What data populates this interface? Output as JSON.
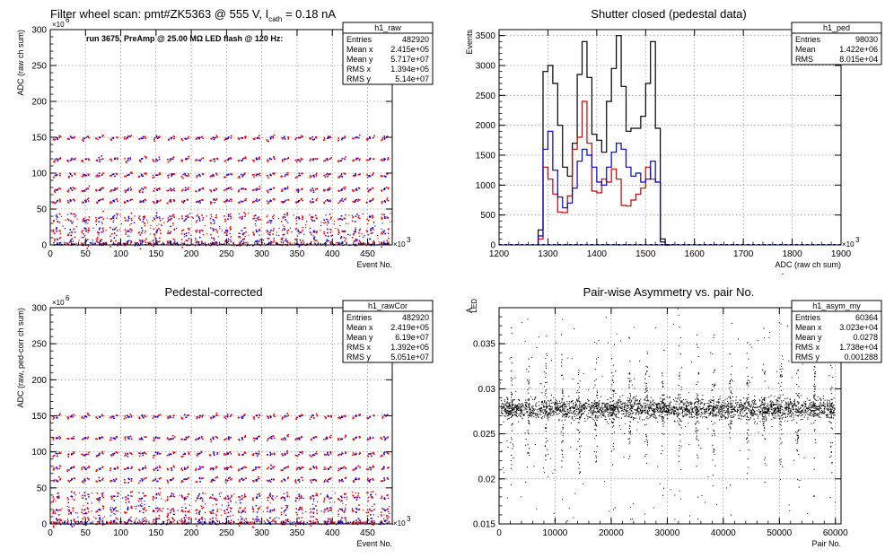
{
  "chart_data": [
    {
      "type": "scatter",
      "title": "Filter wheel scan: pmt#ZK5363 @   555 V, I",
      "title_sub": "cath",
      "title_tail": " = 0.18 nA",
      "annotation": "run 3675, PreAmp @ 25.00 MΩ LED flash @  120 Hz:",
      "xlabel": "Event No.",
      "ylabel": "ADC (raw ch sum)",
      "x_exp": "×10",
      "x_exp_pow": "3",
      "y_exp": "×10",
      "y_exp_pow": "6",
      "xlim": [
        0,
        485
      ],
      "ylim": [
        0,
        300
      ],
      "xticks": [
        "0",
        "50",
        "100",
        "150",
        "200",
        "250",
        "300",
        "350",
        "400",
        "450"
      ],
      "yticks": [
        "0",
        "50",
        "100",
        "150",
        "200",
        "250",
        "300"
      ],
      "levels": [
        150,
        120,
        98,
        78,
        62,
        38,
        20,
        5
      ],
      "colors": {
        "a": "#ff0000",
        "b": "#0000ff"
      },
      "stats": {
        "name": "h1_raw",
        "rows": [
          [
            "Entries",
            "482920"
          ],
          [
            "Mean x",
            "2.415e+05"
          ],
          [
            "Mean y",
            "5.717e+07"
          ],
          [
            "RMS x",
            "1.394e+05"
          ],
          [
            "RMS y",
            "5.14e+07"
          ]
        ]
      }
    },
    {
      "type": "histogram",
      "title": "Shutter closed (pedestal data)",
      "xlabel": "ADC (raw ch sum)",
      "ylabel": "Events",
      "x_exp": "×10",
      "x_exp_pow": "3",
      "xlim": [
        1200,
        1900
      ],
      "ylim": [
        0,
        3600
      ],
      "xticks": [
        "1200",
        "1300",
        "1400",
        "1500",
        "1600",
        "1700",
        "1800",
        "1900"
      ],
      "yticks": [
        "0",
        "500",
        "1000",
        "1500",
        "2000",
        "2500",
        "3000",
        "3500"
      ],
      "bin_start": 1280,
      "bin_width": 10,
      "series": [
        {
          "color": "#000000",
          "values": [
            250,
            2900,
            3000,
            2700,
            2000,
            1300,
            1150,
            1700,
            2850,
            3400,
            2800,
            1850,
            1750,
            1550,
            2400,
            2950,
            3500,
            2650,
            1900,
            1950,
            1950,
            2150,
            2700,
            3400,
            1950,
            100,
            0
          ]
        },
        {
          "color": "#cc0000",
          "values": [
            100,
            1300,
            1100,
            850,
            550,
            540,
            820,
            1600,
            1800,
            2400,
            1700,
            900,
            870,
            1100,
            1050,
            1270,
            1100,
            660,
            650,
            750,
            850,
            950,
            1300,
            1100,
            1050,
            50,
            0
          ]
        },
        {
          "color": "#0000cc",
          "values": [
            150,
            1600,
            1900,
            1250,
            800,
            620,
            700,
            950,
            1400,
            1600,
            1500,
            1300,
            1050,
            1000,
            1300,
            1550,
            1700,
            1600,
            1300,
            1150,
            1200,
            1050,
            1100,
            1400,
            1050,
            50,
            0
          ]
        }
      ],
      "stats": {
        "name": "h1_ped",
        "rows": [
          [
            "Entries",
            "98030"
          ],
          [
            "Mean",
            "1.422e+06"
          ],
          [
            "RMS",
            "8.015e+04"
          ]
        ]
      }
    },
    {
      "type": "scatter",
      "title": "Pedestal-corrected",
      "xlabel": "Event No.",
      "ylabel": "ADC (raw, ped-corr ch sum)",
      "x_exp": "×10",
      "x_exp_pow": "3",
      "y_exp": "×10",
      "y_exp_pow": "6",
      "xlim": [
        0,
        485
      ],
      "ylim": [
        0,
        300
      ],
      "xticks": [
        "0",
        "50",
        "100",
        "150",
        "200",
        "250",
        "300",
        "350",
        "400",
        "450"
      ],
      "yticks": [
        "0",
        "50",
        "100",
        "150",
        "200",
        "250",
        "300"
      ],
      "levels": [
        150,
        120,
        98,
        78,
        62,
        38,
        20,
        5
      ],
      "colors": {
        "a": "#ff0000",
        "b": "#0000ff"
      },
      "stats": {
        "name": "h1_rawCor",
        "rows": [
          [
            "Entries",
            "482920"
          ],
          [
            "Mean x",
            "2.419e+05"
          ],
          [
            "Mean y",
            "6.19e+07"
          ],
          [
            "RMS x",
            "1.392e+05"
          ],
          [
            "RMS y",
            "5.051e+07"
          ]
        ]
      }
    },
    {
      "type": "scatter",
      "title": "Pair-wise Asymmetry vs. pair No.",
      "xlabel": "Pair No.",
      "ylabel": "A",
      "ylabel_sub": "LED",
      "xlim": [
        0,
        61000
      ],
      "ylim": [
        0.015,
        0.039
      ],
      "xticks": [
        "0",
        "10000",
        "20000",
        "30000",
        "40000",
        "50000",
        "60000"
      ],
      "yticks": [
        "0.015",
        "0.02",
        "0.025",
        "0.03",
        "0.035"
      ],
      "band_center": 0.0278,
      "stats": {
        "name": "h1_asym_my",
        "rows": [
          [
            "Entries",
            "60364"
          ],
          [
            "Mean x",
            "3.023e+04"
          ],
          [
            "Mean y",
            "0.0278"
          ],
          [
            "RMS x",
            "1.738e+04"
          ],
          [
            "RMS y",
            "0.001288"
          ]
        ]
      }
    }
  ]
}
